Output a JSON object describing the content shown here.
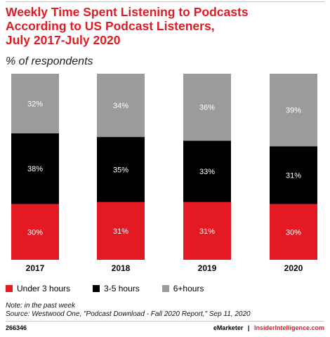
{
  "header": {
    "title_lines": [
      "Weekly Time Spent Listening to Podcasts",
      "According to US Podcast Listeners,",
      "July 2017-July 2020"
    ],
    "subtitle": "% of respondents"
  },
  "chart_data": {
    "type": "bar",
    "stacked": true,
    "orientation": "vertical",
    "categories": [
      "2017",
      "2018",
      "2019",
      "2020"
    ],
    "series": [
      {
        "name": "Under 3 hours",
        "color": "#e31a22",
        "label_color": "#ffffff",
        "values": [
          30,
          31,
          31,
          30
        ]
      },
      {
        "name": "3-5 hours",
        "color": "#000000",
        "label_color": "#ffffff",
        "values": [
          38,
          35,
          33,
          31
        ]
      },
      {
        "name": "6+hours",
        "color": "#9b9b9b",
        "label_color": "#ffffff",
        "values": [
          32,
          34,
          36,
          39
        ]
      }
    ],
    "value_suffix": "%",
    "ylim": [
      0,
      100
    ],
    "grid": false,
    "legend_position": "bottom-left"
  },
  "legend": {
    "items": [
      {
        "label": "Under 3 hours",
        "color": "#e31a22"
      },
      {
        "label": "3-5 hours",
        "color": "#000000"
      },
      {
        "label": "6+hours",
        "color": "#9b9b9b"
      }
    ]
  },
  "footer": {
    "note": "Note: in the past week",
    "source": "Source: Westwood One, \"Podcast Download - Fall 2020 Report,\" Sep 11, 2020",
    "chart_id": "266346",
    "brand": "eMarketer",
    "brand_separator": "|",
    "brand_site": "InsiderIntelligence.com"
  }
}
